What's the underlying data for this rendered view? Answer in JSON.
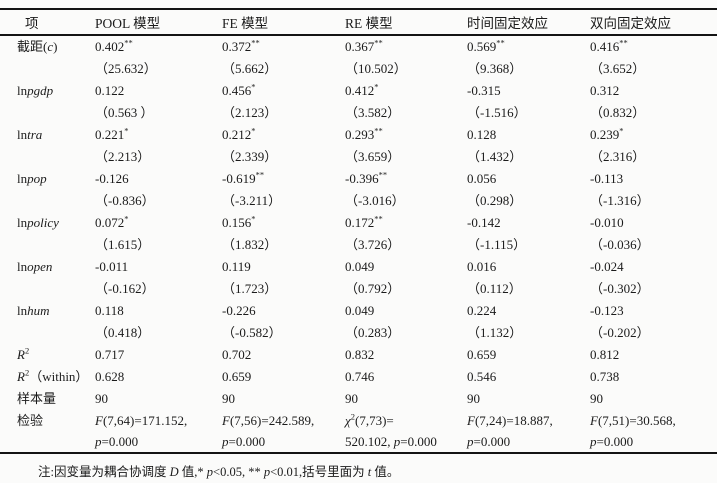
{
  "colors": {
    "ink": "#1b1b1b",
    "paper": "#fbfbfa",
    "rule": "#141414"
  },
  "table": {
    "header": [
      "项",
      "POOL 模型",
      "FE 模型",
      "RE 模型",
      "时间固定效应",
      "双向固定效应"
    ],
    "rows": [
      {
        "label": [
          "截距(",
          {
            "t": "c",
            "i": 1
          },
          ")"
        ],
        "cells": [
          [
            "0.402",
            {
              "t": "**",
              "s": 1
            }
          ],
          [
            "0.372",
            {
              "t": "**",
              "s": 1
            }
          ],
          [
            "0.367",
            {
              "t": "**",
              "s": 1
            }
          ],
          [
            "0.569",
            {
              "t": "**",
              "s": 1
            }
          ],
          [
            "0.416",
            {
              "t": "**",
              "s": 1
            }
          ]
        ]
      },
      {
        "label": [],
        "cells": [
          [
            "（25.632）"
          ],
          [
            "（5.662）"
          ],
          [
            "（10.502）"
          ],
          [
            "（9.368）"
          ],
          [
            "（3.652）"
          ]
        ]
      },
      {
        "label": [
          "ln",
          {
            "t": "pgdp",
            "i": 1
          }
        ],
        "cells": [
          [
            "0.122"
          ],
          [
            "0.456",
            {
              "t": "*",
              "s": 1
            }
          ],
          [
            "0.412",
            {
              "t": "*",
              "s": 1
            }
          ],
          [
            "-0.315"
          ],
          [
            "0.312"
          ]
        ]
      },
      {
        "label": [],
        "cells": [
          [
            "（0.563 ）"
          ],
          [
            "（2.123）"
          ],
          [
            "（3.582）"
          ],
          [
            "（-1.516）"
          ],
          [
            "（0.832）"
          ]
        ]
      },
      {
        "label": [
          "ln",
          {
            "t": "tra",
            "i": 1
          }
        ],
        "cells": [
          [
            "0.221",
            {
              "t": "*",
              "s": 1
            }
          ],
          [
            "0.212",
            {
              "t": "*",
              "s": 1
            }
          ],
          [
            "0.293",
            {
              "t": "**",
              "s": 1
            }
          ],
          [
            "0.128"
          ],
          [
            "0.239",
            {
              "t": "*",
              "s": 1
            }
          ]
        ]
      },
      {
        "label": [],
        "cells": [
          [
            "（2.213）"
          ],
          [
            "（2.339）"
          ],
          [
            "（3.659）"
          ],
          [
            "（1.432）"
          ],
          [
            "（2.316）"
          ]
        ]
      },
      {
        "label": [
          "ln",
          {
            "t": "pop",
            "i": 1
          }
        ],
        "cells": [
          [
            "-0.126"
          ],
          [
            "-0.619",
            {
              "t": "**",
              "s": 1
            }
          ],
          [
            "-0.396",
            {
              "t": "**",
              "s": 1
            }
          ],
          [
            "0.056"
          ],
          [
            "-0.113"
          ]
        ]
      },
      {
        "label": [],
        "cells": [
          [
            "（-0.836）"
          ],
          [
            "（-3.211）"
          ],
          [
            "（-3.016）"
          ],
          [
            "（0.298）"
          ],
          [
            "（-1.316）"
          ]
        ]
      },
      {
        "label": [
          "ln",
          {
            "t": "policy",
            "i": 1
          }
        ],
        "cells": [
          [
            "0.072",
            {
              "t": "*",
              "s": 1
            }
          ],
          [
            "0.156",
            {
              "t": "*",
              "s": 1
            }
          ],
          [
            "0.172",
            {
              "t": "**",
              "s": 1
            }
          ],
          [
            "-0.142"
          ],
          [
            "-0.010"
          ]
        ]
      },
      {
        "label": [],
        "cells": [
          [
            "（1.615）"
          ],
          [
            "（1.832）"
          ],
          [
            "（3.726）"
          ],
          [
            "（-1.115）"
          ],
          [
            "（-0.036）"
          ]
        ]
      },
      {
        "label": [
          "ln",
          {
            "t": "open",
            "i": 1
          }
        ],
        "cells": [
          [
            "-0.011"
          ],
          [
            "0.119"
          ],
          [
            "0.049"
          ],
          [
            "0.016"
          ],
          [
            "-0.024"
          ]
        ]
      },
      {
        "label": [],
        "cells": [
          [
            "（-0.162）"
          ],
          [
            "（1.723）"
          ],
          [
            "（0.792）"
          ],
          [
            "（0.112）"
          ],
          [
            "（-0.302）"
          ]
        ]
      },
      {
        "label": [
          "ln",
          {
            "t": "hum",
            "i": 1
          }
        ],
        "cells": [
          [
            "0.118"
          ],
          [
            "-0.226"
          ],
          [
            "0.049"
          ],
          [
            "0.224"
          ],
          [
            "-0.123"
          ]
        ]
      },
      {
        "label": [],
        "cells": [
          [
            "（0.418）"
          ],
          [
            "（-0.582）"
          ],
          [
            "（0.283）"
          ],
          [
            "（1.132）"
          ],
          [
            "（-0.202）"
          ]
        ]
      },
      {
        "label": [
          {
            "t": "R",
            "i": 1
          },
          {
            "t": "2",
            "s": 1
          }
        ],
        "cells": [
          [
            "0.717"
          ],
          [
            "0.702"
          ],
          [
            "0.832"
          ],
          [
            "0.659"
          ],
          [
            "0.812"
          ]
        ]
      },
      {
        "label": [
          {
            "t": "R",
            "i": 1
          },
          {
            "t": "2",
            "s": 1
          },
          "（within）"
        ],
        "cells": [
          [
            "0.628"
          ],
          [
            "0.659"
          ],
          [
            "0.746"
          ],
          [
            "0.546"
          ],
          [
            "0.738"
          ]
        ]
      },
      {
        "label": [
          "样本量"
        ],
        "cells": [
          [
            "90"
          ],
          [
            "90"
          ],
          [
            "90"
          ],
          [
            "90"
          ],
          [
            "90"
          ]
        ]
      },
      {
        "label": [
          "检验"
        ],
        "cells": [
          [
            {
              "t": "F",
              "i": 1
            },
            "(7,64)=171.152,"
          ],
          [
            {
              "t": "F",
              "i": 1
            },
            "(7,56)=242.589,"
          ],
          [
            {
              "t": "χ",
              "i": 1
            },
            {
              "t": "2",
              "s": 1
            },
            "(7,73)="
          ],
          [
            {
              "t": "F",
              "i": 1
            },
            "(7,24)=18.887,"
          ],
          [
            {
              "t": "F",
              "i": 1
            },
            "(7,51)=30.568,"
          ]
        ]
      },
      {
        "label": [],
        "cells": [
          [
            {
              "t": "p",
              "i": 1
            },
            "=0.000"
          ],
          [
            {
              "t": "p",
              "i": 1
            },
            "=0.000"
          ],
          [
            "520.102, ",
            {
              "t": "p",
              "i": 1
            },
            "=0.000"
          ],
          [
            {
              "t": "p",
              "i": 1
            },
            "=0.000"
          ],
          [
            {
              "t": "p",
              "i": 1
            },
            "=0.000"
          ]
        ]
      }
    ]
  },
  "footnote": [
    "注:因变量为耦合协调度 ",
    {
      "t": "D",
      "i": 1
    },
    " 值,* ",
    {
      "t": "p",
      "i": 1
    },
    "<0.05, ** ",
    {
      "t": "p",
      "i": 1
    },
    "<0.01,括号里面为 ",
    {
      "t": "t",
      "i": 1
    },
    " 值。"
  ]
}
